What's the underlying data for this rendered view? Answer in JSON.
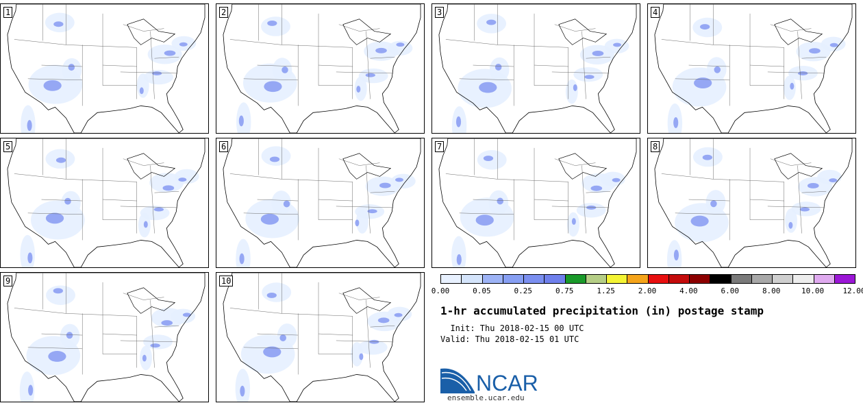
{
  "panels": [
    {
      "label": "1"
    },
    {
      "label": "2"
    },
    {
      "label": "3"
    },
    {
      "label": "4"
    },
    {
      "label": "5"
    },
    {
      "label": "6"
    },
    {
      "label": "7"
    },
    {
      "label": "8"
    },
    {
      "label": "9"
    },
    {
      "label": "10"
    }
  ],
  "legend": {
    "colors": [
      "#e8f1ff",
      "#d4e4fb",
      "#9db3f6",
      "#879ff3",
      "#7b8ff0",
      "#6f80ec",
      "#1a9a2a",
      "#b5ce86",
      "#f4f434",
      "#f5a41a",
      "#e80f0f",
      "#c40b0b",
      "#8c0000",
      "#000000",
      "#7a7a7a",
      "#a8a8a8",
      "#cfcfcf",
      "#ededed",
      "#dfaaef",
      "#9b16d6"
    ],
    "ticks": [
      "0.00",
      "0.05",
      "0.25",
      "0.75",
      "1.25",
      "2.00",
      "4.00",
      "6.00",
      "8.00",
      "10.00",
      "12.00"
    ]
  },
  "title": "1-hr accumulated precipitation (in) postage stamp",
  "init_line": "  Init: Thu 2018-02-15 00 UTC",
  "valid_line": "Valid: Thu 2018-02-15 01 UTC",
  "logo": {
    "text": "NCAR",
    "url": "ensemble.ucar.edu"
  }
}
